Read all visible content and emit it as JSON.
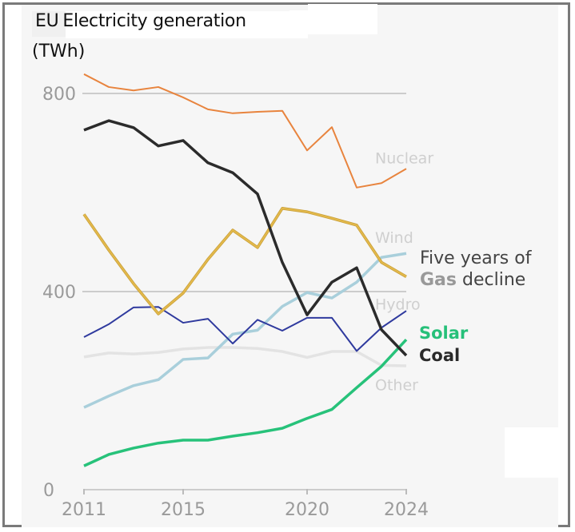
{
  "title": {
    "prefix": "EU",
    "main": "Electricity generation",
    "unit": "(TWh)"
  },
  "annotation": {
    "line1": "Five years of",
    "highlight": "Gas",
    "line2_rest": "decline"
  },
  "legend": {
    "solar": "Solar",
    "coal": "Coal"
  },
  "chart_data": {
    "type": "line",
    "title": "EU Electricity generation (TWh)",
    "xlabel": "",
    "ylabel": "TWh",
    "x": [
      2011,
      2012,
      2013,
      2014,
      2015,
      2016,
      2017,
      2018,
      2019,
      2020,
      2021,
      2022,
      2023,
      2024
    ],
    "xticks": [
      "2011",
      "2015",
      "2020",
      "2024"
    ],
    "yticks": [
      "0",
      "400",
      "800"
    ],
    "ylim": [
      0,
      840
    ],
    "grid": "horizontal at 400 and 800",
    "legend_placement": "direct labels at line ends (right)",
    "series": [
      {
        "name": "Nuclear",
        "color": "#e8843e",
        "values": [
          839,
          813,
          806,
          813,
          792,
          768,
          760,
          763,
          765,
          685,
          732,
          610,
          619,
          648
        ]
      },
      {
        "name": "Coal",
        "color": "#2b2b2b",
        "values": [
          726,
          745,
          731,
          694,
          705,
          660,
          640,
          597,
          459,
          353,
          419,
          448,
          323,
          271
        ]
      },
      {
        "name": "Gas",
        "color": "#e3b94b",
        "values": [
          556,
          484,
          416,
          355,
          397,
          465,
          524,
          489,
          568,
          561,
          548,
          534,
          459,
          430
        ]
      },
      {
        "name": "Wind",
        "color": "#a9cfdb",
        "values": [
          166,
          189,
          210,
          222,
          263,
          266,
          314,
          322,
          370,
          398,
          387,
          419,
          469,
          477
        ]
      },
      {
        "name": "Hydro",
        "color": "#2f3a9e",
        "values": [
          308,
          334,
          368,
          369,
          337,
          345,
          295,
          343,
          321,
          347,
          347,
          280,
          327,
          361
        ]
      },
      {
        "name": "Other",
        "color": "#e3e3e3",
        "values": [
          268,
          276,
          274,
          277,
          284,
          287,
          287,
          285,
          279,
          267,
          279,
          279,
          251,
          250
        ]
      },
      {
        "name": "Solar",
        "color": "#27c27a",
        "values": [
          48,
          71,
          84,
          94,
          100,
          100,
          108,
          115,
          124,
          144,
          162,
          206,
          249,
          303
        ]
      }
    ],
    "labels": [
      {
        "series": "Nuclear",
        "text": "Nuclear",
        "value": 670
      },
      {
        "series": "Wind",
        "text": "Wind",
        "value": 510
      },
      {
        "series": "Hydro",
        "text": "Hydro",
        "value": 375
      },
      {
        "series": "Other",
        "text": "Other",
        "value": 212
      }
    ]
  }
}
